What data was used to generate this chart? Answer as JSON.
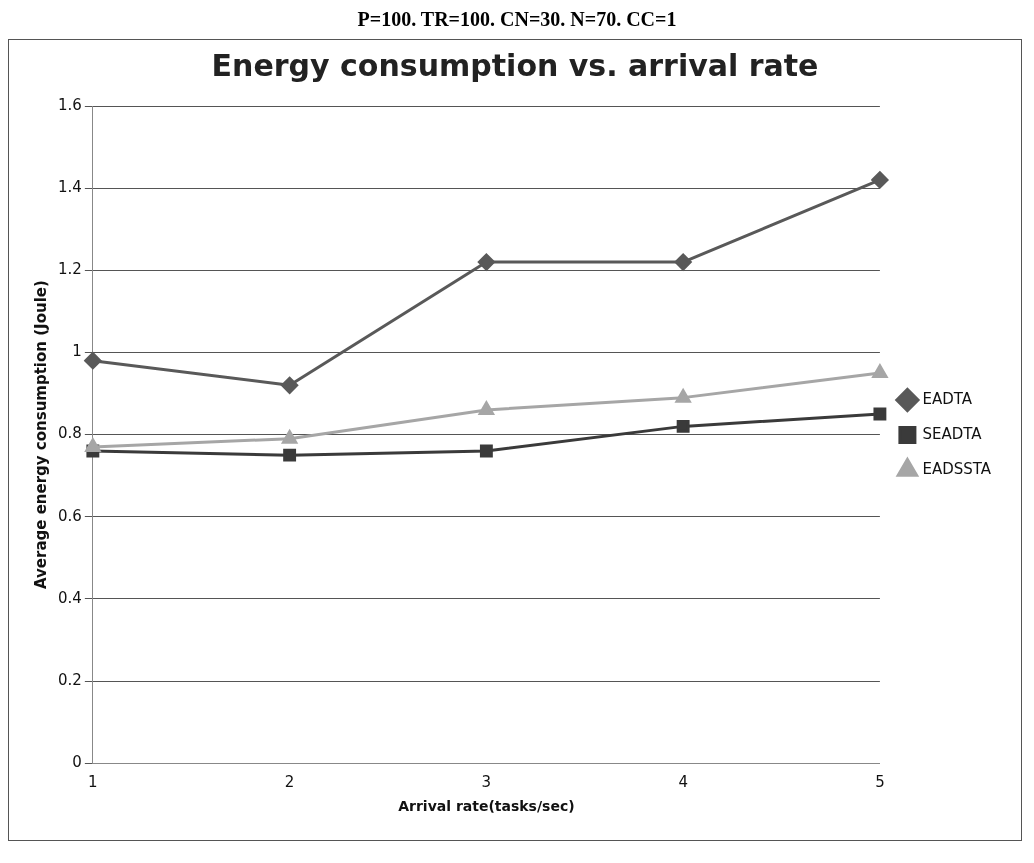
{
  "chart_data": {
    "type": "line",
    "title": "Energy consumption vs. arrival rate",
    "subtitle": "P=100. TR=100. CN=30. N=70. CC=1",
    "xlabel": "Arrival rate(tasks/sec)",
    "ylabel": "Average energy consumption (Joule)",
    "categories": [
      "1",
      "2",
      "3",
      "4",
      "5"
    ],
    "series": [
      {
        "name": "EADTA",
        "color": "#595959",
        "marker": "diamond",
        "values": [
          0.98,
          0.92,
          1.22,
          1.22,
          1.42
        ]
      },
      {
        "name": "SEADTA",
        "color": "#3a3a3a",
        "marker": "square",
        "values": [
          0.76,
          0.75,
          0.76,
          0.82,
          0.85
        ]
      },
      {
        "name": "EADSSTA",
        "color": "#a6a6a6",
        "marker": "triangle",
        "values": [
          0.77,
          0.79,
          0.86,
          0.89,
          0.95
        ]
      }
    ],
    "ylim": [
      0,
      1.6
    ],
    "yticks": [
      0,
      0.2,
      0.4,
      0.6,
      0.8,
      1,
      1.2,
      1.4,
      1.6
    ],
    "grid": "y",
    "legend": "right"
  }
}
